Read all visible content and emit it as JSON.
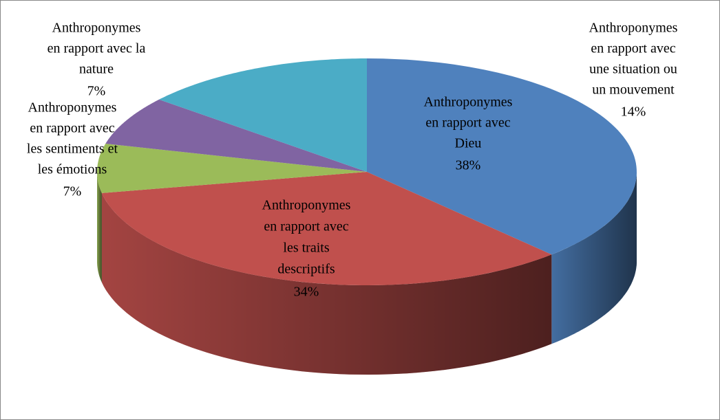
{
  "chart_data": {
    "type": "pie3d",
    "categories": [
      [
        "Anthroponymes",
        "en rapport avec",
        "Dieu"
      ],
      [
        "Anthroponymes",
        "en rapport avec",
        "les traits",
        "descriptifs"
      ],
      [
        "Anthroponymes",
        "en rapport avec",
        "les sentiments et",
        "les émotions"
      ],
      [
        "Anthroponymes",
        "en rapport avec la",
        "nature"
      ],
      [
        "Anthroponymes",
        "en rapport avec",
        "une situation ou",
        "un mouvement"
      ]
    ],
    "values": [
      38,
      34,
      7,
      7,
      14
    ],
    "value_labels": [
      "38%",
      "34%",
      "7%",
      "7%",
      "14%"
    ],
    "colors": [
      "#4f81bd",
      "#c0504d",
      "#9bbb59",
      "#8064a2",
      "#4bacc6"
    ]
  }
}
